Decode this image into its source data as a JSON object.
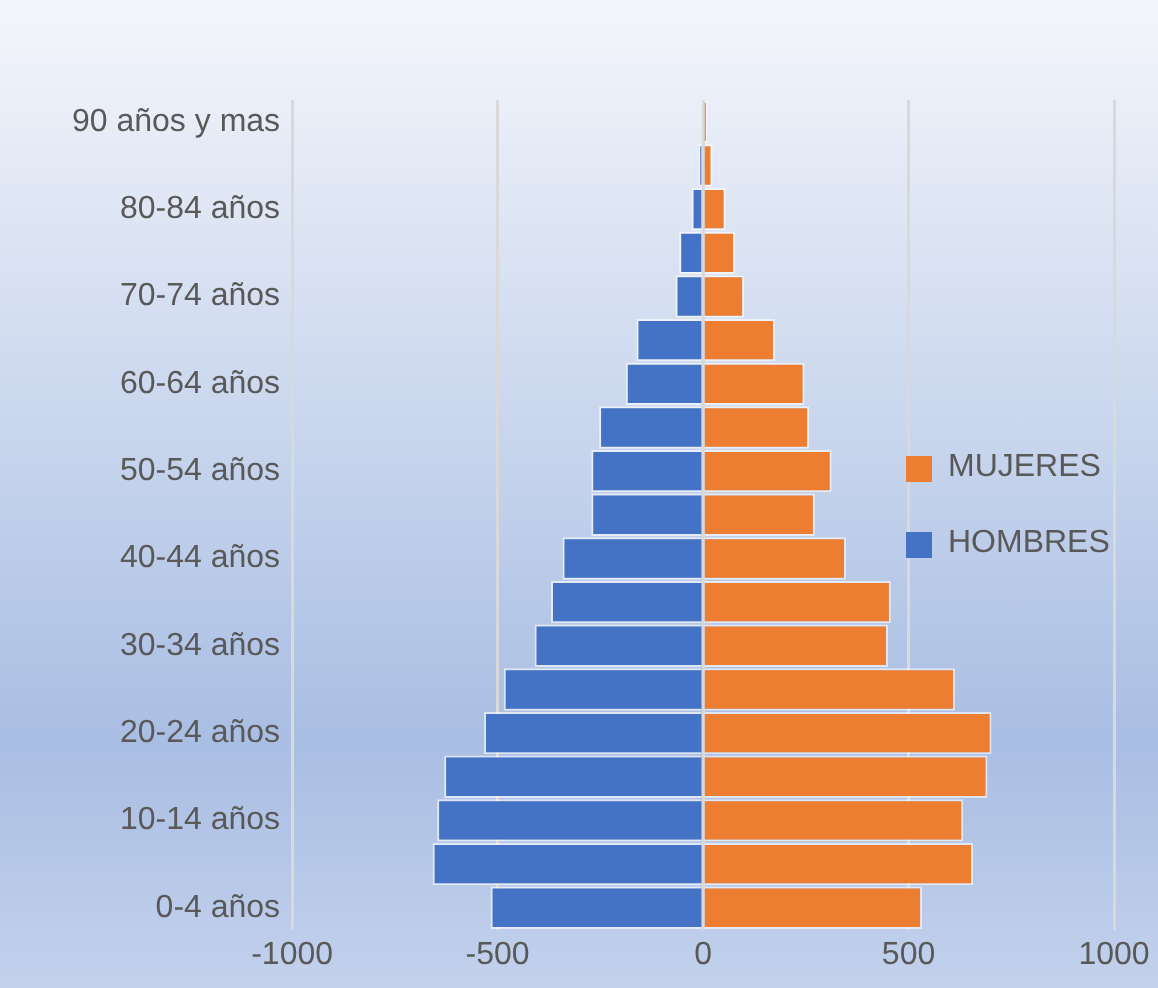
{
  "chart_data": {
    "type": "bar",
    "orientation": "horizontal",
    "stacked": true,
    "categories": [
      "90 años y mas",
      null,
      "80-84 años",
      null,
      "70-74 años",
      null,
      "60-64 años",
      null,
      "50-54 años",
      null,
      "40-44 años",
      null,
      "30-34 años",
      null,
      "20-24 años",
      null,
      "10-14 años",
      null,
      "0-4 años"
    ],
    "series": [
      {
        "name": "MUJERES",
        "color": "#ed7d31",
        "values": [
          10,
          23,
          55,
          78,
          100,
          175,
          247,
          258,
          313,
          272,
          348,
          457,
          450,
          613,
          702,
          692,
          633,
          657,
          533
        ]
      },
      {
        "name": "HOMBRES",
        "color": "#4472c4",
        "values": [
          null,
          -10,
          -28,
          -58,
          -67,
          -162,
          -188,
          -253,
          -272,
          -272,
          -342,
          -370,
          -410,
          -485,
          -533,
          -630,
          -647,
          -658,
          -517
        ]
      }
    ],
    "xlim": [
      -1000,
      1000
    ],
    "xticks": [
      -1000,
      -500,
      0,
      500,
      1000
    ],
    "grid": "x",
    "legend": "right"
  }
}
